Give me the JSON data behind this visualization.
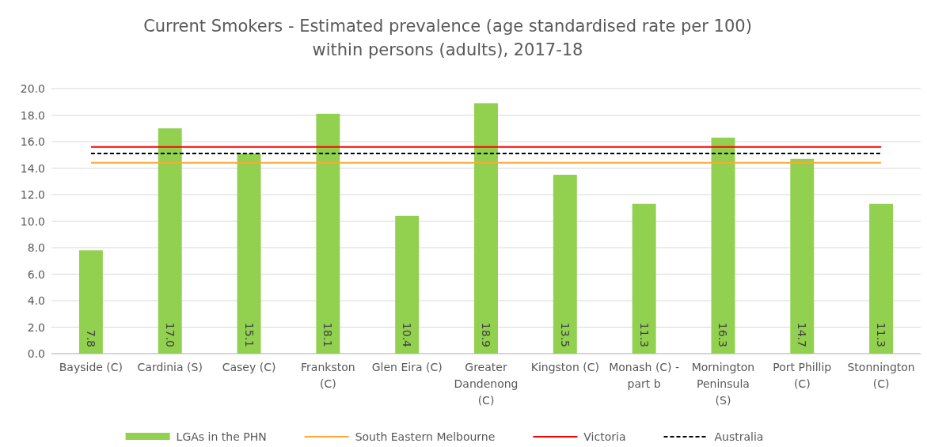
{
  "chart_data": {
    "type": "bar",
    "title": "Current Smokers - Estimated prevalence (age standardised rate per 100) within persons (adults), 2017-18",
    "categories": [
      "Bayside (C)",
      "Cardinia (S)",
      "Casey (C)",
      "Frankston (C)",
      "Glen Eira (C)",
      "Greater Dandenong (C)",
      "Kingston (C)",
      "Monash (C) - part b",
      "Mornington Peninsula (S)",
      "Port Phillip (C)",
      "Stonnington (C)"
    ],
    "series": [
      {
        "name": "LGAs in the PHN",
        "color": "#92d050",
        "values": [
          7.8,
          17.0,
          15.1,
          18.1,
          10.4,
          18.9,
          13.5,
          11.3,
          16.3,
          14.7,
          11.3
        ],
        "value_labels": [
          "7.8",
          "17.0",
          "15.1",
          "18.1",
          "10.4",
          "18.9",
          "13.5",
          "11.3",
          "16.3",
          "14.7",
          "11.3"
        ]
      },
      {
        "name": "South Eastern Melbourne",
        "type": "line",
        "color": "#ffa833",
        "values": [
          14.4,
          14.4,
          14.4,
          14.4,
          14.4,
          14.4,
          14.4,
          14.4,
          14.4,
          14.4,
          14.4
        ]
      },
      {
        "name": "Victoria",
        "type": "line",
        "color": "#ff0000",
        "values": [
          15.6,
          15.6,
          15.6,
          15.6,
          15.6,
          15.6,
          15.6,
          15.6,
          15.6,
          15.6,
          15.6
        ]
      },
      {
        "name": "Australia",
        "type": "line",
        "color": "#000000",
        "line_style": "dashed",
        "values": [
          15.1,
          15.1,
          15.1,
          15.1,
          15.1,
          15.1,
          15.1,
          15.1,
          15.1,
          15.1,
          15.1
        ]
      }
    ],
    "ylim": [
      0,
      20
    ],
    "yticks": [
      {
        "value": 0,
        "label": "0.0"
      },
      {
        "value": 2,
        "label": "2.0"
      },
      {
        "value": 4,
        "label": "4.0"
      },
      {
        "value": 6,
        "label": "6.0"
      },
      {
        "value": 8,
        "label": "8.0"
      },
      {
        "value": 10,
        "label": "10.0"
      },
      {
        "value": 12,
        "label": "12.0"
      },
      {
        "value": 14,
        "label": "14.0"
      },
      {
        "value": 16,
        "label": "16.0"
      },
      {
        "value": 18,
        "label": "18.0"
      },
      {
        "value": 20,
        "label": "20.0"
      }
    ],
    "grid": "y",
    "legend": "bottom"
  }
}
